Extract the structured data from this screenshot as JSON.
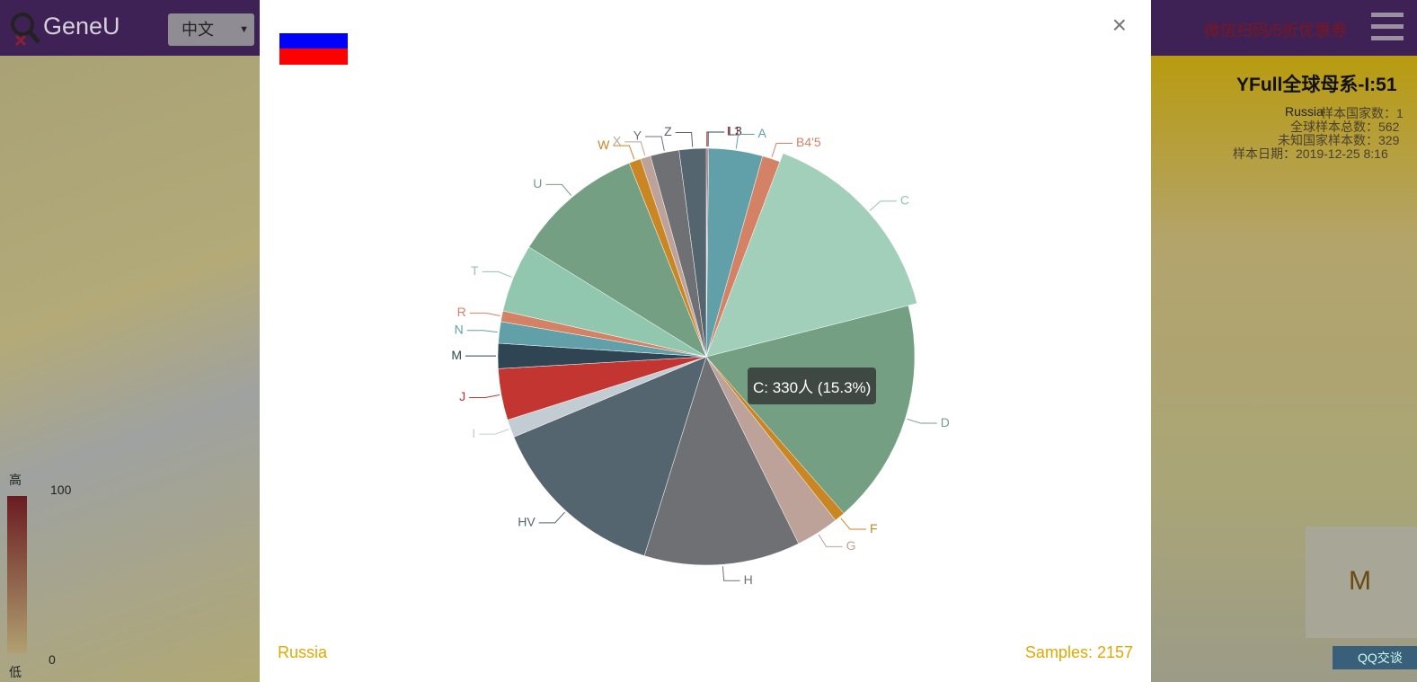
{
  "header": {
    "logo": "GeneU",
    "language": "中文",
    "promo": "微信扫码/5折优惠券"
  },
  "side_panel": {
    "title": "YFull全球母系-I:51",
    "country": "Russia",
    "lines": [
      "样本国家数：1",
      "全球样本总数：562",
      "未知国家样本数：329",
      "样本日期：2019-12-25 8:16"
    ],
    "legend": {
      "high": "高",
      "max": "100",
      "min": "0",
      "low": "低"
    },
    "chat": "QQ交谈",
    "qr_text": "M"
  },
  "modal": {
    "close": "×",
    "footer_left": "Russia",
    "footer_right": "Samples: 2157",
    "tooltip": "C: 330人 (15.3%)"
  },
  "chart_data": {
    "type": "pie",
    "categories": [
      "L1",
      "L3",
      "A",
      "B4'5",
      "C",
      "D",
      "F",
      "G",
      "H",
      "HV",
      "I",
      "J",
      "M",
      "N",
      "R",
      "T",
      "U",
      "W",
      "X",
      "Y",
      "Z"
    ],
    "values": [
      2,
      2,
      90,
      30,
      330,
      377,
      18,
      72,
      261,
      300,
      30,
      86,
      42,
      36,
      18,
      114,
      219,
      20,
      17,
      48,
      45
    ],
    "colors": [
      "#c23531",
      "#2f4554",
      "#61a0a8",
      "#d48265",
      "#91c7ae",
      "#749f83",
      "#ca8622",
      "#bda29a",
      "#6e7074",
      "#546570",
      "#c4ccd3",
      "#c23531",
      "#2f4554",
      "#61a0a8",
      "#d48265",
      "#91c7ae",
      "#749f83",
      "#ca8622",
      "#bda29a",
      "#6e7074",
      "#546570"
    ],
    "highlighted": 4
  }
}
